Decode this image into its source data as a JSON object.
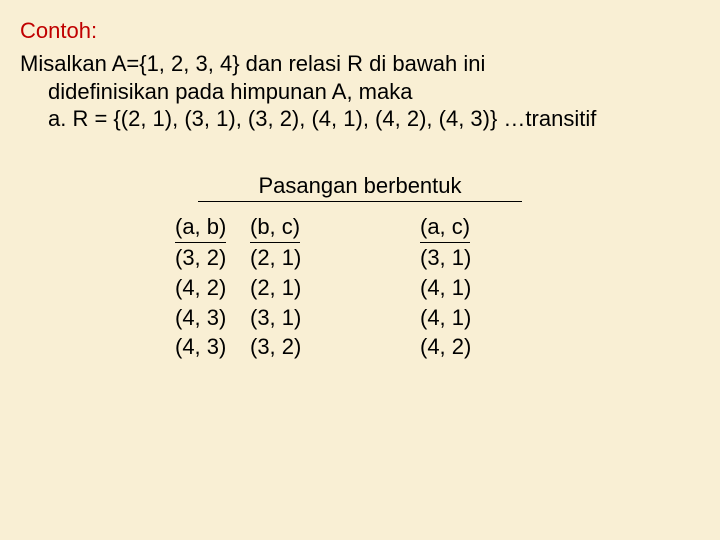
{
  "heading": "Contoh:",
  "line1": "Misalkan A={1, 2, 3, 4} dan relasi R di bawah ini",
  "line2": "didefinisikan pada himpunan A, maka",
  "line3": "a. R = {(2, 1), (3, 1), (3, 2), (4, 1), (4, 2), (4, 3)} …transitif",
  "subtitle": "Pasangan berbentuk",
  "table": {
    "headers": {
      "ab": "(a, b)",
      "bc": "(b, c)",
      "ac": "(a, c)"
    },
    "rows": [
      {
        "ab": "(3, 2)",
        "bc": "(2, 1)",
        "ac": "(3, 1)"
      },
      {
        "ab": "(4, 2)",
        "bc": "(2, 1)",
        "ac": "(4, 1)"
      },
      {
        "ab": "(4, 3)",
        "bc": " (3, 1)",
        "ac": "(4, 1)"
      },
      {
        "ab": "(4, 3)",
        "bc": " (3, 2)",
        "ac": "(4, 2)"
      }
    ]
  },
  "colors": {
    "background": "#f9efd4",
    "heading": "#c00000",
    "text": "#000000"
  },
  "fontsize_pt": 22
}
